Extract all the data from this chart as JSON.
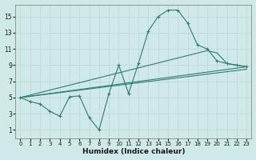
{
  "xlabel": "Humidex (Indice chaleur)",
  "bg_color": "#cfe8e8",
  "grid_color": "#c0d8d8",
  "line_color": "#2e7d6e",
  "xlim": [
    -0.5,
    23.5
  ],
  "ylim": [
    0.0,
    16.5
  ],
  "xticks": [
    0,
    1,
    2,
    3,
    4,
    5,
    6,
    7,
    8,
    9,
    10,
    11,
    12,
    13,
    14,
    15,
    16,
    17,
    18,
    19,
    20,
    21,
    22,
    23
  ],
  "yticks": [
    1,
    3,
    5,
    7,
    9,
    11,
    13,
    15
  ],
  "curve1_x": [
    0,
    1,
    2,
    3,
    4,
    5,
    6,
    7,
    8,
    9,
    10,
    11,
    12,
    13,
    14,
    15,
    16,
    17,
    18,
    19,
    20,
    21,
    22,
    23
  ],
  "curve1_y": [
    5.0,
    4.5,
    4.2,
    3.3,
    2.7,
    5.1,
    5.2,
    2.5,
    1.0,
    5.5,
    9.0,
    5.5,
    9.2,
    13.2,
    15.0,
    15.8,
    15.8,
    14.2,
    11.5,
    11.0,
    9.5,
    9.2,
    9.0,
    8.8
  ],
  "line2_x": [
    0,
    23
  ],
  "line2_y": [
    5.0,
    8.8
  ],
  "line3_x": [
    0,
    19,
    20,
    21,
    22,
    23
  ],
  "line3_y": [
    5.0,
    10.8,
    10.5,
    9.2,
    9.0,
    8.8
  ],
  "line4_x": [
    0,
    23
  ],
  "line4_y": [
    5.0,
    8.5
  ]
}
